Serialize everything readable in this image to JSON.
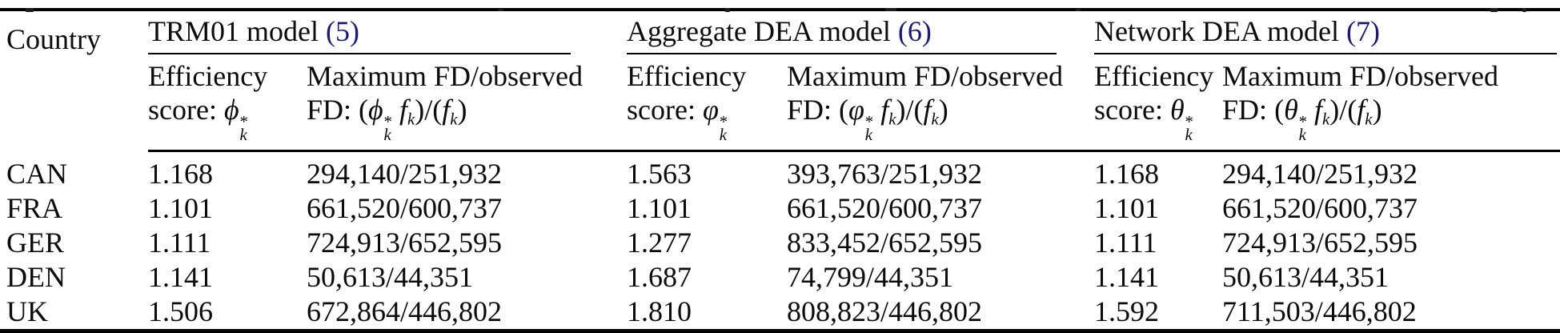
{
  "meta": {
    "text_color": "#0c0c0c",
    "link_color": "#1b1b74",
    "rule_color": "#000000",
    "background": "#ffffff"
  },
  "table": {
    "country_header": "Country",
    "groups": [
      {
        "title": "TRM01 model",
        "ref": "(5)",
        "eff_line1": "Efficiency",
        "eff_line2_prefix": "score: ",
        "eff_symbol": "ϕ^*_k",
        "max_line1": "Maximum FD/observed",
        "max_line2_prefix": "FD: ",
        "max_formula": "(ϕ^*_k f_k)/(f_k)"
      },
      {
        "title": "Aggregate DEA model",
        "ref": "(6)",
        "eff_line1": "Efficiency",
        "eff_line2_prefix": "score: ",
        "eff_symbol": "φ^*_k",
        "max_line1": "Maximum FD/observed",
        "max_line2_prefix": "FD: ",
        "max_formula": "(φ^*_k f_k)/(f_k)"
      },
      {
        "title": "Network DEA model",
        "ref": "(7)",
        "eff_line1": "Efficiency",
        "eff_line2_prefix": "score: ",
        "eff_symbol": "θ^*_k",
        "max_line1": "Maximum FD/observed",
        "max_line2_prefix": "FD: ",
        "max_formula": "(θ^*_k f_k)/(f_k)"
      }
    ],
    "rows": [
      {
        "country": "CAN",
        "cells": [
          {
            "eff": "1.168",
            "ratio": "294,140/251,932"
          },
          {
            "eff": "1.563",
            "ratio": "393,763/251,932"
          },
          {
            "eff": "1.168",
            "ratio": "294,140/251,932"
          }
        ]
      },
      {
        "country": "FRA",
        "cells": [
          {
            "eff": "1.101",
            "ratio": "661,520/600,737"
          },
          {
            "eff": "1.101",
            "ratio": "661,520/600,737"
          },
          {
            "eff": "1.101",
            "ratio": "661,520/600,737"
          }
        ]
      },
      {
        "country": "GER",
        "cells": [
          {
            "eff": "1.111",
            "ratio": "724,913/652,595"
          },
          {
            "eff": "1.277",
            "ratio": "833,452/652,595"
          },
          {
            "eff": "1.111",
            "ratio": "724,913/652,595"
          }
        ]
      },
      {
        "country": "DEN",
        "cells": [
          {
            "eff": "1.141",
            "ratio": "50,613/44,351"
          },
          {
            "eff": "1.687",
            "ratio": "74,799/44,351"
          },
          {
            "eff": "1.141",
            "ratio": "50,613/44,351"
          }
        ]
      },
      {
        "country": "UK",
        "cells": [
          {
            "eff": "1.506",
            "ratio": "672,864/446,802"
          },
          {
            "eff": "1.810",
            "ratio": "808,823/446,802"
          },
          {
            "eff": "1.592",
            "ratio": "711,503/446,802"
          }
        ]
      }
    ]
  }
}
